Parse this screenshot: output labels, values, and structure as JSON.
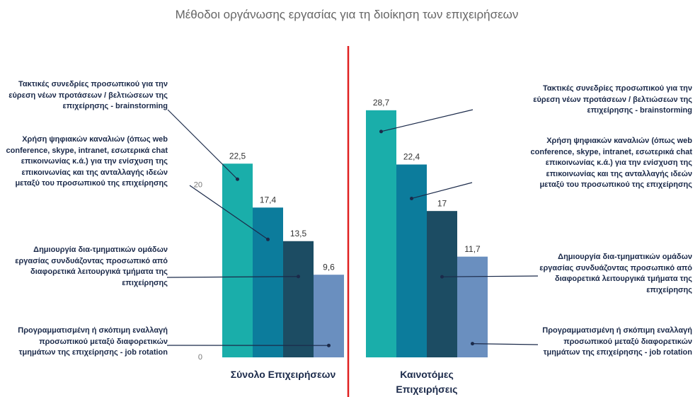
{
  "chart_data": {
    "type": "bar",
    "title": "Μέθοδοι οργάνωσης εργασίας για τη διοίκηση των επιχειρήσεων",
    "categories": [
      "Σύνολο Επιχειρήσεων",
      "Καινοτόμες Επιχειρήσεις"
    ],
    "series": [
      {
        "name": "Τακτικές συνεδρίες προσωπικού για την εύρεση νέων προτάσεων / βελτιώσεων της επιχείρησης - brainstorming",
        "color": "#1aaeaa",
        "values": [
          22.5,
          28.7
        ],
        "value_labels": [
          "22,5",
          "28,7"
        ]
      },
      {
        "name": "Χρήση ψηφιακών καναλιών (όπως web conference, skype, intranet, εσωτερικά chat επικοινωνίας κ.ά.) για την ενίσχυση της επικοινωνίας και της ανταλλαγής ιδεών μεταξύ του προσωπικού της επιχείρησης",
        "color": "#0c7c9c",
        "values": [
          17.4,
          22.4
        ],
        "value_labels": [
          "17,4",
          "22,4"
        ]
      },
      {
        "name": "Δημιουργία δια-τμηματικών ομάδων εργασίας συνδυάζοντας προσωπικό από διαφορετικά λειτουργικά τμήματα της επιχείρησης",
        "color": "#1c4c63",
        "values": [
          13.5,
          17
        ],
        "value_labels": [
          "13,5",
          "17"
        ]
      },
      {
        "name": "Προγραμματισμένη ή σκόπιμη εναλλαγή προσωπικού μεταξύ διαφορετικών τμημάτων της επιχείρησης - job rotation",
        "color": "#6a8fbf",
        "values": [
          9.6,
          11.7
        ],
        "value_labels": [
          "9,6",
          "11,7"
        ]
      }
    ],
    "ylim": [
      0,
      30
    ],
    "yticks": [
      0,
      20
    ],
    "grid": false
  }
}
